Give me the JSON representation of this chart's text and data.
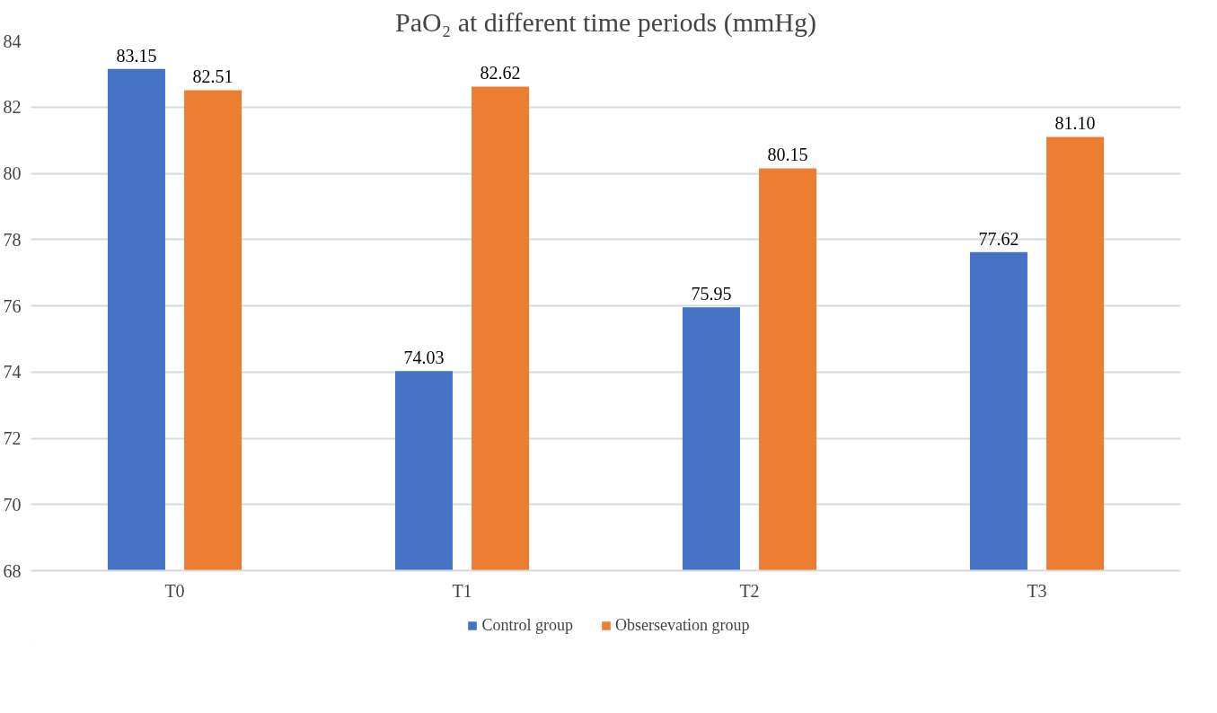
{
  "chart_data": {
    "type": "bar",
    "title": "PaO₂ at different time periods (mmHg)",
    "categories": [
      "T0",
      "T1",
      "T2",
      "T3"
    ],
    "series": [
      {
        "name": "Control group",
        "color": "#4472c4",
        "values": [
          83.15,
          74.03,
          75.95,
          77.62
        ],
        "value_labels": [
          "83.15",
          "74.03",
          "75.95",
          "77.62"
        ]
      },
      {
        "name": "Obsersevation group",
        "color": "#ed7d31",
        "values": [
          82.51,
          82.62,
          80.15,
          81.1
        ],
        "value_labels": [
          "82.51",
          "82.62",
          "80.15",
          "81.10"
        ]
      }
    ],
    "ylim": [
      68,
      84
    ],
    "yticks": [
      68,
      70,
      72,
      74,
      76,
      78,
      80,
      82,
      84
    ],
    "grid": "y",
    "legend": "bottom"
  }
}
